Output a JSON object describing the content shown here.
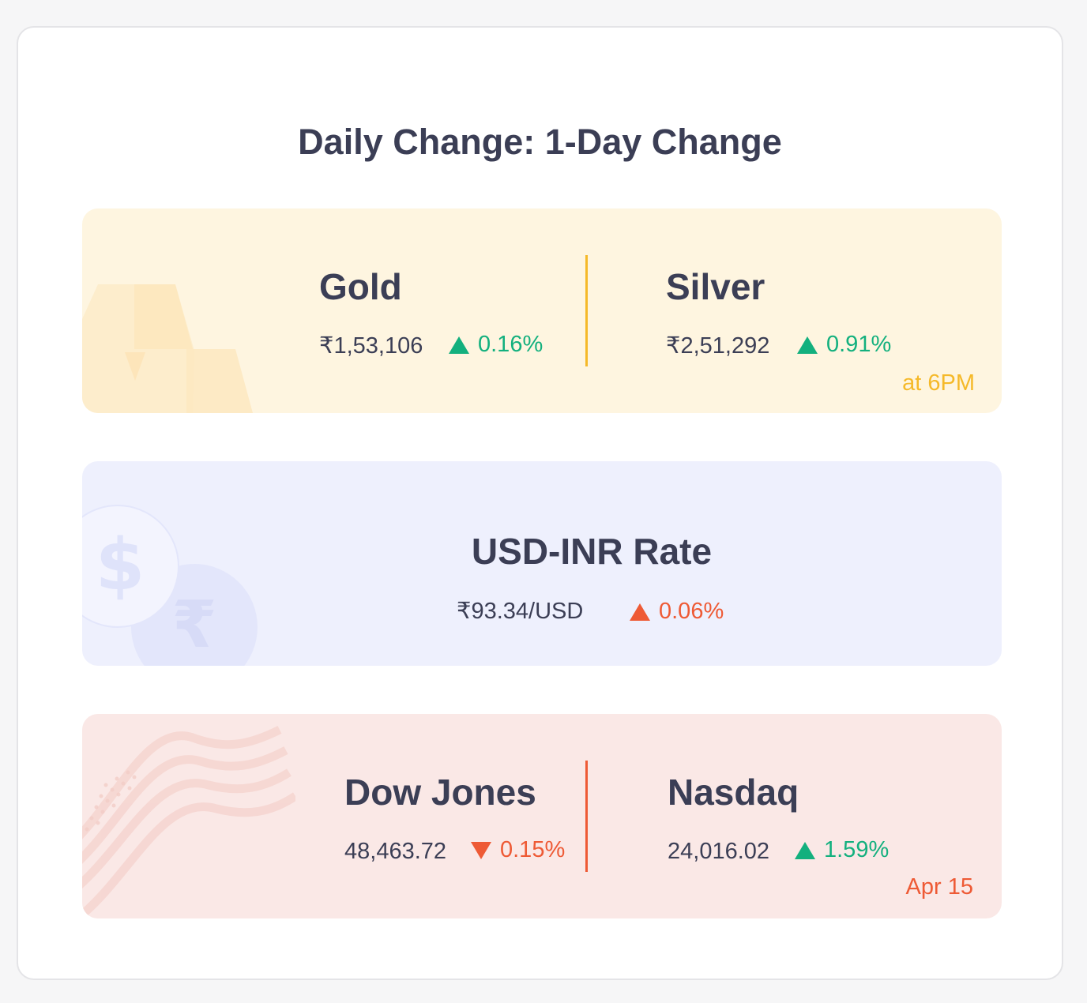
{
  "title": "Daily Change: 1-Day Change",
  "colors": {
    "up": "#13b07e",
    "down": "#ee5a35",
    "gold_accent": "#f5b929",
    "us_accent": "#ee5a35"
  },
  "metals": {
    "gold": {
      "name": "Gold",
      "price": "₹1,53,106",
      "change": "0.16%",
      "direction": "up"
    },
    "silver": {
      "name": "Silver",
      "price": "₹2,51,292",
      "change": "0.91%",
      "direction": "up"
    },
    "note": "at 6PM",
    "icon": "gold-bars-icon"
  },
  "currency": {
    "name": "USD-INR Rate",
    "price": "₹93.34/USD",
    "change": "0.06%",
    "direction": "up",
    "icon": "dollar-rupee-coins-icon"
  },
  "us_markets": {
    "dow": {
      "name": "Dow Jones",
      "price": "48,463.72",
      "change": "0.15%",
      "direction": "down"
    },
    "nasdaq": {
      "name": "Nasdaq",
      "price": "24,016.02",
      "change": "1.59%",
      "direction": "up"
    },
    "note": "Apr 15",
    "icon": "us-flag-icon"
  }
}
